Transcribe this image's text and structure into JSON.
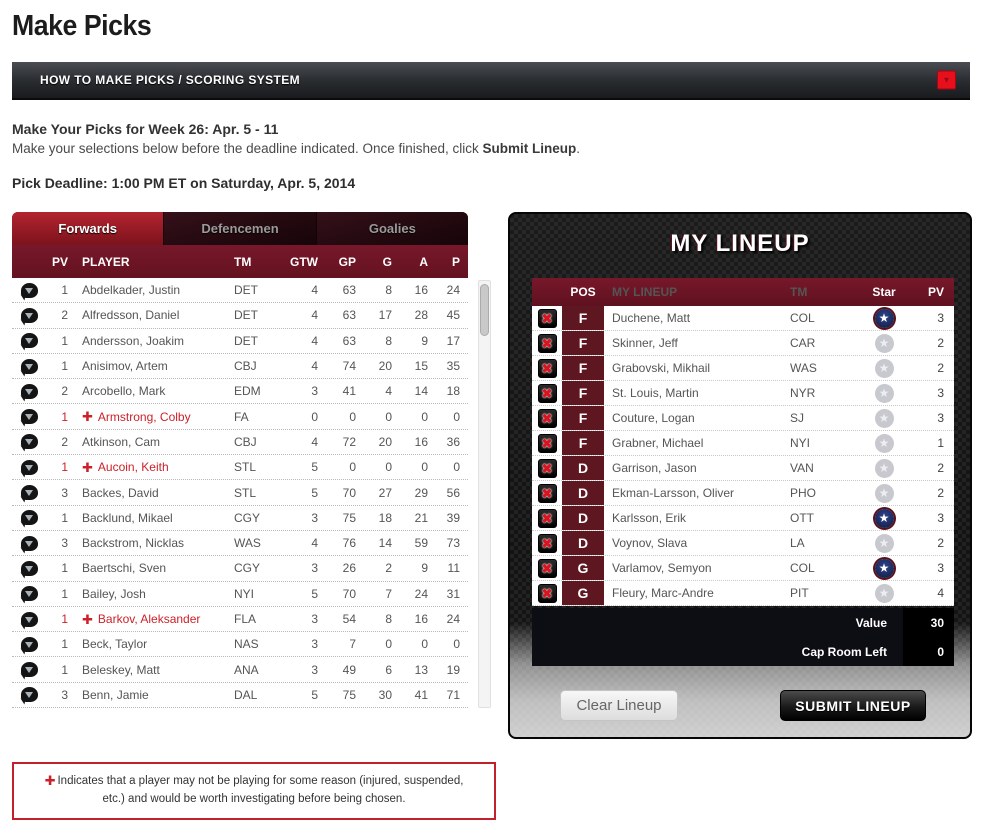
{
  "page_title": "Make Picks",
  "howto_bar": {
    "label": "HOW TO MAKE PICKS / SCORING SYSTEM"
  },
  "intro": {
    "week_heading": "Make Your Picks for Week 26: Apr. 5 - 11",
    "instructions_prefix": "Make your selections below before the deadline indicated. Once finished, click ",
    "instructions_bold": "Submit Lineup",
    "instructions_suffix": ".",
    "deadline": "Pick Deadline: 1:00 PM ET on Saturday, Apr. 5, 2014"
  },
  "players_panel": {
    "tabs": [
      {
        "label": "Forwards",
        "active": true
      },
      {
        "label": "Defencemen",
        "active": false
      },
      {
        "label": "Goalies",
        "active": false
      }
    ],
    "columns": {
      "pv": "PV",
      "player": "PLAYER",
      "tm": "TM",
      "gtw": "GTW",
      "gp": "GP",
      "g": "G",
      "a": "A",
      "p": "P"
    },
    "rows": [
      {
        "pv": "1",
        "player": "Abdelkader, Justin",
        "tm": "DET",
        "gtw": "4",
        "gp": "63",
        "g": "8",
        "a": "16",
        "p": "24",
        "flagged": false
      },
      {
        "pv": "2",
        "player": "Alfredsson, Daniel",
        "tm": "DET",
        "gtw": "4",
        "gp": "63",
        "g": "17",
        "a": "28",
        "p": "45",
        "flagged": false
      },
      {
        "pv": "1",
        "player": "Andersson, Joakim",
        "tm": "DET",
        "gtw": "4",
        "gp": "63",
        "g": "8",
        "a": "9",
        "p": "17",
        "flagged": false
      },
      {
        "pv": "1",
        "player": "Anisimov, Artem",
        "tm": "CBJ",
        "gtw": "4",
        "gp": "74",
        "g": "20",
        "a": "15",
        "p": "35",
        "flagged": false
      },
      {
        "pv": "2",
        "player": "Arcobello, Mark",
        "tm": "EDM",
        "gtw": "3",
        "gp": "41",
        "g": "4",
        "a": "14",
        "p": "18",
        "flagged": false
      },
      {
        "pv": "1",
        "player": "Armstrong, Colby",
        "tm": "FA",
        "gtw": "0",
        "gp": "0",
        "g": "0",
        "a": "0",
        "p": "0",
        "flagged": true
      },
      {
        "pv": "2",
        "player": "Atkinson, Cam",
        "tm": "CBJ",
        "gtw": "4",
        "gp": "72",
        "g": "20",
        "a": "16",
        "p": "36",
        "flagged": false
      },
      {
        "pv": "1",
        "player": "Aucoin, Keith",
        "tm": "STL",
        "gtw": "5",
        "gp": "0",
        "g": "0",
        "a": "0",
        "p": "0",
        "flagged": true
      },
      {
        "pv": "3",
        "player": "Backes, David",
        "tm": "STL",
        "gtw": "5",
        "gp": "70",
        "g": "27",
        "a": "29",
        "p": "56",
        "flagged": false
      },
      {
        "pv": "1",
        "player": "Backlund, Mikael",
        "tm": "CGY",
        "gtw": "3",
        "gp": "75",
        "g": "18",
        "a": "21",
        "p": "39",
        "flagged": false
      },
      {
        "pv": "3",
        "player": "Backstrom, Nicklas",
        "tm": "WAS",
        "gtw": "4",
        "gp": "76",
        "g": "14",
        "a": "59",
        "p": "73",
        "flagged": false
      },
      {
        "pv": "1",
        "player": "Baertschi, Sven",
        "tm": "CGY",
        "gtw": "3",
        "gp": "26",
        "g": "2",
        "a": "9",
        "p": "11",
        "flagged": false
      },
      {
        "pv": "1",
        "player": "Bailey, Josh",
        "tm": "NYI",
        "gtw": "5",
        "gp": "70",
        "g": "7",
        "a": "24",
        "p": "31",
        "flagged": false
      },
      {
        "pv": "1",
        "player": "Barkov, Aleksander",
        "tm": "FLA",
        "gtw": "3",
        "gp": "54",
        "g": "8",
        "a": "16",
        "p": "24",
        "flagged": true
      },
      {
        "pv": "1",
        "player": "Beck, Taylor",
        "tm": "NAS",
        "gtw": "3",
        "gp": "7",
        "g": "0",
        "a": "0",
        "p": "0",
        "flagged": false
      },
      {
        "pv": "1",
        "player": "Beleskey, Matt",
        "tm": "ANA",
        "gtw": "3",
        "gp": "49",
        "g": "6",
        "a": "13",
        "p": "19",
        "flagged": false
      },
      {
        "pv": "3",
        "player": "Benn, Jamie",
        "tm": "DAL",
        "gtw": "5",
        "gp": "75",
        "g": "30",
        "a": "41",
        "p": "71",
        "flagged": false
      }
    ]
  },
  "lineup_panel": {
    "title": "MY LINEUP",
    "columns": {
      "pos": "POS",
      "player": "MY LINEUP",
      "tm": "TM",
      "star": "Star",
      "pv": "PV"
    },
    "rows": [
      {
        "pos": "F",
        "player": "Duchene, Matt",
        "tm": "COL",
        "starred": true,
        "pv": "3"
      },
      {
        "pos": "F",
        "player": "Skinner, Jeff",
        "tm": "CAR",
        "starred": false,
        "pv": "2"
      },
      {
        "pos": "F",
        "player": "Grabovski, Mikhail",
        "tm": "WAS",
        "starred": false,
        "pv": "2"
      },
      {
        "pos": "F",
        "player": "St. Louis, Martin",
        "tm": "NYR",
        "starred": false,
        "pv": "3"
      },
      {
        "pos": "F",
        "player": "Couture, Logan",
        "tm": "SJ",
        "starred": false,
        "pv": "3"
      },
      {
        "pos": "F",
        "player": "Grabner, Michael",
        "tm": "NYI",
        "starred": false,
        "pv": "1"
      },
      {
        "pos": "D",
        "player": "Garrison, Jason",
        "tm": "VAN",
        "starred": false,
        "pv": "2"
      },
      {
        "pos": "D",
        "player": "Ekman-Larsson, Oliver",
        "tm": "PHO",
        "starred": false,
        "pv": "2"
      },
      {
        "pos": "D",
        "player": "Karlsson, Erik",
        "tm": "OTT",
        "starred": true,
        "pv": "3"
      },
      {
        "pos": "D",
        "player": "Voynov, Slava",
        "tm": "LA",
        "starred": false,
        "pv": "2"
      },
      {
        "pos": "G",
        "player": "Varlamov, Semyon",
        "tm": "COL",
        "starred": true,
        "pv": "3"
      },
      {
        "pos": "G",
        "player": "Fleury, Marc-Andre",
        "tm": "PIT",
        "starred": false,
        "pv": "4"
      }
    ],
    "totals": [
      {
        "label": "Value",
        "value": "30"
      },
      {
        "label": "Cap Room Left",
        "value": "0"
      }
    ],
    "clear_button": "Clear Lineup",
    "submit_button": "SUBMIT LINEUP"
  },
  "note": {
    "text": "Indicates that a player may not be playing for some reason (injured, suspended, etc.) and would be worth investigating before being chosen."
  },
  "icons": {
    "howto_toggle": "chevron-down-icon",
    "row_add": "add-player-icon",
    "remove": "remove-x-icon",
    "star": "star-icon",
    "injury": "injury-cross-icon"
  },
  "colors": {
    "maroon_header": "#6a1423",
    "tab_active_red": "#a82330",
    "flag_red": "#cc2129",
    "accent_red": "#e60f1b",
    "star_navy": "#1e2f66",
    "pos_cell_maroon": "#5e1621"
  }
}
